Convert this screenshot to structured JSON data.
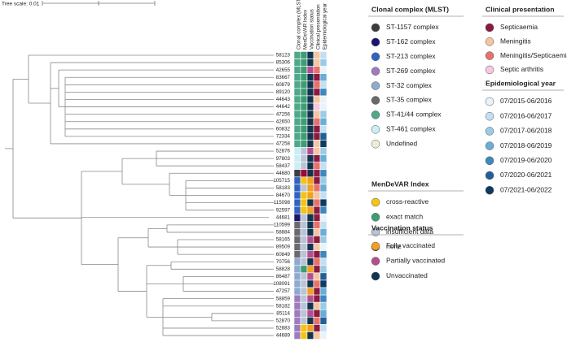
{
  "tree_scale": "Tree scale: 0.01",
  "leaves": [
    "58123",
    "85306",
    "42655",
    "83667",
    "60879",
    "89120",
    "44643",
    "44642",
    "47256",
    "42650",
    "60832",
    "72334",
    "47258",
    "52876",
    "97803",
    "58437",
    "44680",
    "105715",
    "58183",
    "84670",
    "115098",
    "92597",
    "44681",
    "110599",
    "58884",
    "58165",
    "89509",
    "60849",
    "70756",
    "58828",
    "86487",
    "108091",
    "47257",
    "58859",
    "58182",
    "85114",
    "52870",
    "52883",
    "44689"
  ],
  "columns": [
    "Clonal complex (MLST)",
    "MenDeVAR Index",
    "Vaccination status",
    "Clinical presentation",
    "Epidemiological year"
  ],
  "legends": [
    {
      "title": "Clonal complex (MLST)",
      "items": [
        {
          "label": "ST-1157 complex",
          "color": "#3d3d3d"
        },
        {
          "label": "ST-162 complex",
          "color": "#1b1670"
        },
        {
          "label": "ST-213 complex",
          "color": "#2f63c4"
        },
        {
          "label": "ST-269 complex",
          "color": "#9e7bbd"
        },
        {
          "label": "ST-32 complex",
          "color": "#8eaad0"
        },
        {
          "label": "ST-35 complex",
          "color": "#6a6a6e"
        },
        {
          "label": "ST-41/44 complex",
          "color": "#4fa889"
        },
        {
          "label": "ST-461 complex",
          "color": "#c9eef6"
        },
        {
          "label": "Undefined",
          "color": "#efecd6"
        }
      ]
    },
    {
      "title": "MenDeVAR Index",
      "items": [
        {
          "label": "cross-reactive",
          "color": "#f4c414"
        },
        {
          "label": "exact match",
          "color": "#3c9d74"
        },
        {
          "label": "insufficient data",
          "color": "#b9c5d6"
        },
        {
          "label": "none",
          "color": "#a0073b"
        }
      ]
    },
    {
      "title": "Vaccination status",
      "items": [
        {
          "label": "Fully vaccinated",
          "color": "#f0a11e"
        },
        {
          "label": "Partially vaccinated",
          "color": "#b24f92"
        },
        {
          "label": "Unvaccinated",
          "color": "#12344f"
        }
      ]
    },
    {
      "title": "Clinical presentation",
      "items": [
        {
          "label": "Septicaemia",
          "color": "#8a1b40"
        },
        {
          "label": "Meningitis",
          "color": "#f3c6a3"
        },
        {
          "label": "Meningitis/Septicaemia",
          "color": "#e8716b"
        },
        {
          "label": "Septic arthritis",
          "color": "#f6c8e2"
        }
      ]
    },
    {
      "title": "Epidemiological year",
      "items": [
        {
          "label": "07/2015-06/2016",
          "color": "#eaf3fa"
        },
        {
          "label": "07/2016-06/2017",
          "color": "#c4dff0"
        },
        {
          "label": "07/2017-06/2018",
          "color": "#9ccbe6"
        },
        {
          "label": "07/2018-06/2019",
          "color": "#6aaed6"
        },
        {
          "label": "07/2019-06/2020",
          "color": "#3f87bf"
        },
        {
          "label": "07/2020-06/2021",
          "color": "#225f97"
        },
        {
          "label": "07/2021-06/2022",
          "color": "#0e3a5f"
        }
      ]
    }
  ],
  "cells": [
    [
      6,
      1,
      2,
      1,
      1
    ],
    [
      6,
      1,
      2,
      1,
      2
    ],
    [
      6,
      1,
      1,
      2,
      0
    ],
    [
      6,
      1,
      2,
      0,
      3
    ],
    [
      6,
      1,
      2,
      2,
      1
    ],
    [
      6,
      1,
      2,
      0,
      4
    ],
    [
      6,
      1,
      2,
      1,
      0
    ],
    [
      6,
      1,
      2,
      3,
      0
    ],
    [
      6,
      1,
      2,
      1,
      2
    ],
    [
      6,
      1,
      2,
      2,
      3
    ],
    [
      6,
      1,
      2,
      0,
      1
    ],
    [
      6,
      1,
      2,
      0,
      5
    ],
    [
      6,
      1,
      2,
      1,
      6
    ],
    [
      7,
      2,
      1,
      1,
      2
    ],
    [
      7,
      2,
      2,
      0,
      3
    ],
    [
      7,
      2,
      2,
      2,
      1
    ],
    [
      0,
      3,
      2,
      0,
      4
    ],
    [
      2,
      0,
      0,
      0,
      2
    ],
    [
      2,
      2,
      0,
      2,
      3
    ],
    [
      2,
      0,
      0,
      1,
      1
    ],
    [
      2,
      0,
      2,
      2,
      6
    ],
    [
      2,
      0,
      0,
      0,
      4
    ],
    [
      1,
      2,
      2,
      0,
      0
    ],
    [
      5,
      2,
      2,
      2,
      1
    ],
    [
      5,
      2,
      2,
      1,
      3
    ],
    [
      5,
      2,
      1,
      0,
      2
    ],
    [
      5,
      2,
      2,
      1,
      0
    ],
    [
      5,
      2,
      1,
      0,
      4
    ],
    [
      4,
      2,
      2,
      2,
      1
    ],
    [
      4,
      1,
      0,
      0,
      2
    ],
    [
      4,
      2,
      1,
      1,
      5
    ],
    [
      4,
      2,
      2,
      2,
      6
    ],
    [
      4,
      2,
      0,
      0,
      3
    ],
    [
      3,
      2,
      1,
      0,
      4
    ],
    [
      3,
      2,
      2,
      1,
      2
    ],
    [
      3,
      2,
      1,
      0,
      3
    ],
    [
      3,
      2,
      2,
      2,
      5
    ],
    [
      3,
      0,
      0,
      0,
      1
    ],
    [
      3,
      0,
      2,
      1,
      0
    ]
  ]
}
